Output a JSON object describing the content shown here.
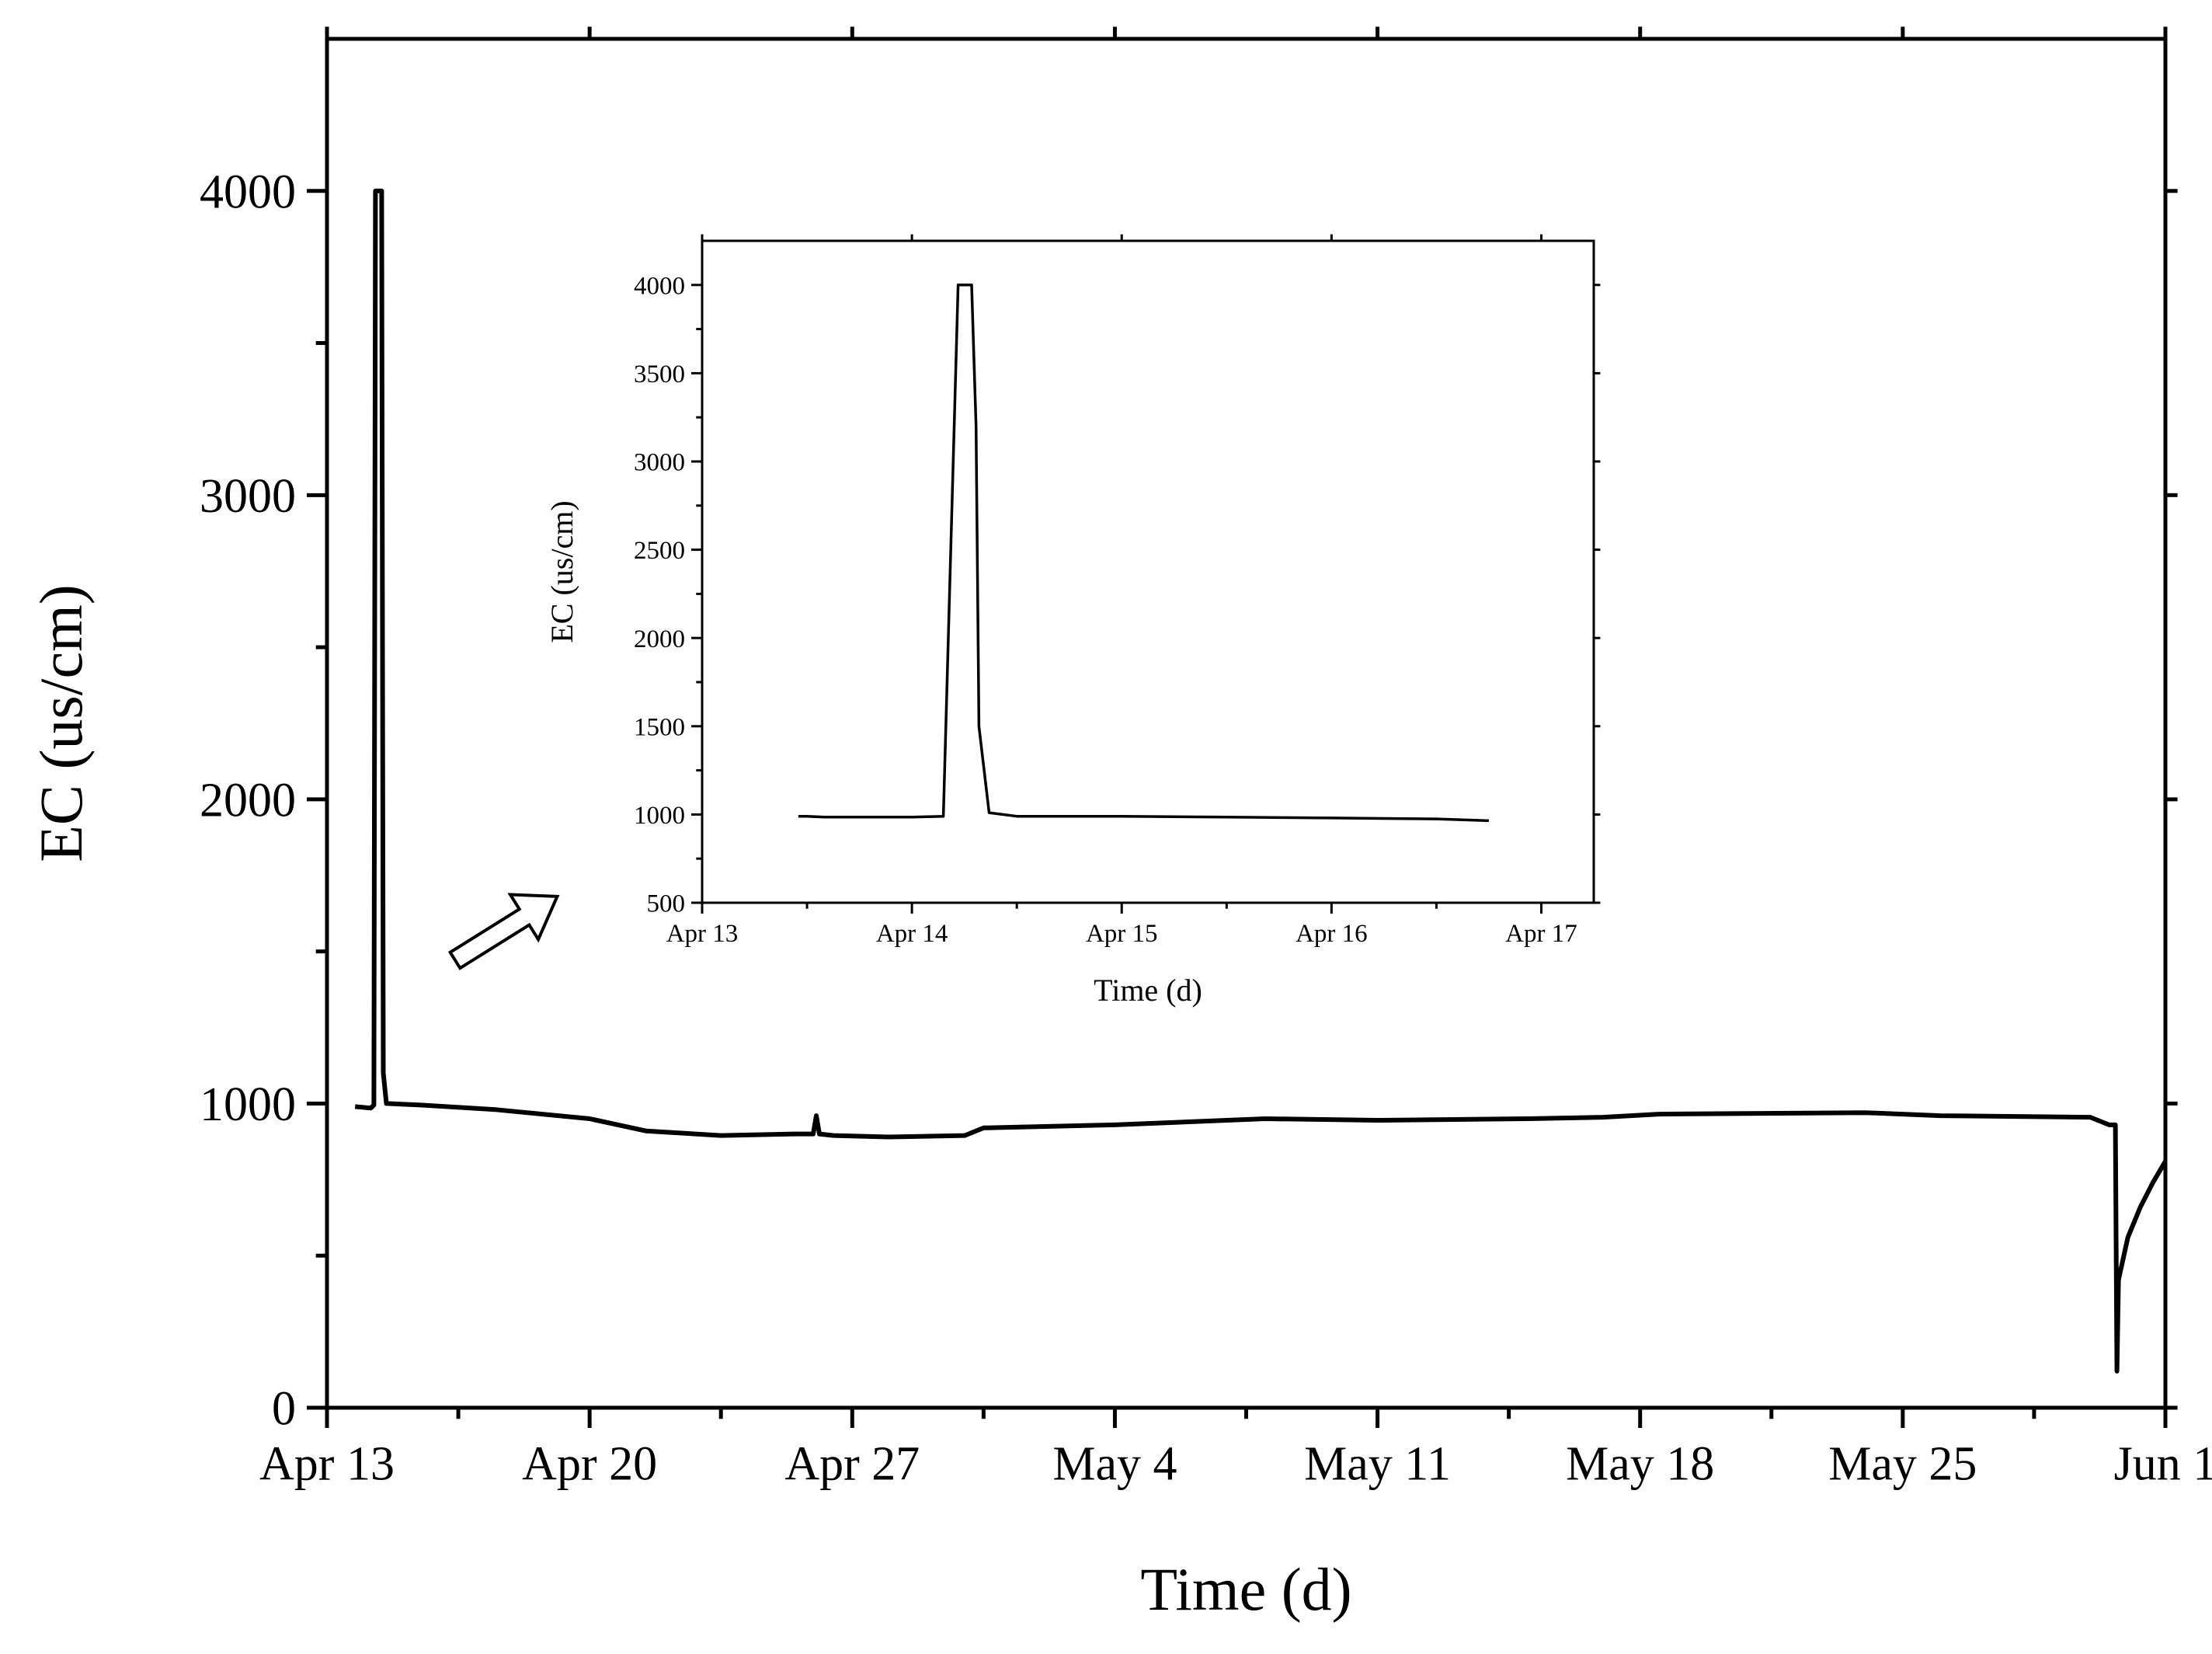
{
  "chart_data": [
    {
      "type": "line",
      "role": "main",
      "xlabel": "Time (d)",
      "ylabel": "EC (us/cm)",
      "x_ticks": [
        "Apr 13",
        "Apr 20",
        "Apr 27",
        "May 4",
        "May 11",
        "May 18",
        "May 25",
        "Jun 1"
      ],
      "y_ticks": [
        "0",
        "1000",
        "2000",
        "3000",
        "4000"
      ],
      "xlim": [
        "2019-04-13",
        "2019-06-01"
      ],
      "ylim": [
        0,
        4500
      ],
      "grid": false,
      "series": [
        {
          "x": [
            "2019-04-13T18:00",
            "2019-04-14T04:00",
            "2019-04-14T06:00",
            "2019-04-14T07:00",
            "2019-04-14T11:00",
            "2019-04-14T12:00",
            "2019-04-14T14:00",
            "2019-04-15T12:00",
            "2019-04-17T12:00",
            "2019-04-20T00:00",
            "2019-04-21T12:00",
            "2019-04-23T12:00",
            "2019-04-25T12:00",
            "2019-04-25T23:00",
            "2019-04-26T01:00",
            "2019-04-26T03:00",
            "2019-04-26T12:00",
            "2019-04-28T00:00",
            "2019-04-30T00:00",
            "2019-04-30T12:00",
            "2019-05-04T00:00",
            "2019-05-08T00:00",
            "2019-05-11T00:00",
            "2019-05-15T00:00",
            "2019-05-17T00:00",
            "2019-05-18T12:00",
            "2019-05-24T00:00",
            "2019-05-26T00:00",
            "2019-05-30T00:00",
            "2019-05-30T12:00",
            "2019-05-30T16:00",
            "2019-05-30T17:00",
            "2019-05-30T18:00",
            "2019-05-31T00:00",
            "2019-05-31T08:00",
            "2019-05-31T16:00",
            "2019-06-01T00:00"
          ],
          "y": [
            990,
            985,
            995,
            4000,
            4000,
            1100,
            1000,
            995,
            980,
            950,
            910,
            895,
            900,
            900,
            960,
            900,
            895,
            890,
            895,
            920,
            930,
            950,
            945,
            950,
            955,
            965,
            970,
            960,
            955,
            930,
            930,
            120,
            420,
            560,
            660,
            740,
            810
          ]
        }
      ]
    },
    {
      "type": "line",
      "role": "inset",
      "xlabel": "Time (d)",
      "ylabel": "EC (us/cm)",
      "x_ticks": [
        "Apr 13",
        "Apr 14",
        "Apr 15",
        "Apr 16",
        "Apr 17"
      ],
      "y_ticks": [
        "500",
        "1000",
        "1500",
        "2000",
        "2500",
        "3000",
        "3500",
        "4000"
      ],
      "xlim": [
        "2019-04-13T00:00",
        "2019-04-17T06:00"
      ],
      "ylim": [
        500,
        4250
      ],
      "grid": false,
      "series": [
        {
          "x": [
            "2019-04-13T11:00",
            "2019-04-13T12:00",
            "2019-04-13T14:00",
            "2019-04-13T18:00",
            "2019-04-14T00:00",
            "2019-04-14T03:36",
            "2019-04-14T05:17",
            "2019-04-14T05:50",
            "2019-04-14T06:50",
            "2019-04-14T07:20",
            "2019-04-14T07:40",
            "2019-04-14T08:50",
            "2019-04-14T12:00",
            "2019-04-15T00:00",
            "2019-04-15T12:00",
            "2019-04-16T00:00",
            "2019-04-16T12:00",
            "2019-04-16T18:00"
          ],
          "y": [
            990,
            990,
            985,
            985,
            985,
            990,
            4000,
            4000,
            4000,
            3200,
            1500,
            1010,
            990,
            990,
            985,
            980,
            975,
            965
          ]
        }
      ]
    }
  ]
}
